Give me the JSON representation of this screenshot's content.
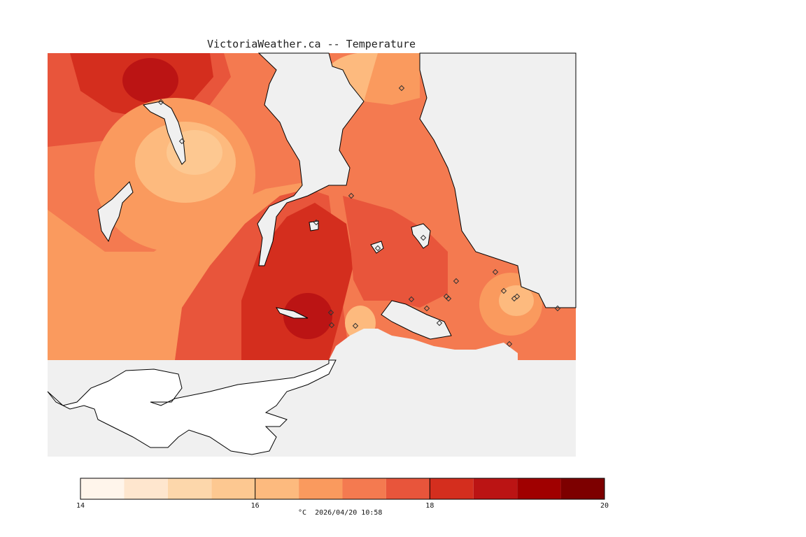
{
  "map": {
    "title": "VictoriaWeather.ca -- Temperature",
    "variable": "Temperature",
    "units": "°C",
    "timestamp": "2026/04/20 10:58",
    "background_color": "#f0f0f0",
    "land_outline_color": "#000000"
  },
  "legend": {
    "ticks": [
      "14",
      "16",
      "18",
      "20"
    ],
    "bins": [
      {
        "from": 14.0,
        "to": 14.5,
        "color": "#fff5eb"
      },
      {
        "from": 14.5,
        "to": 15.0,
        "color": "#fee6ce"
      },
      {
        "from": 15.0,
        "to": 15.5,
        "color": "#fdd7ab"
      },
      {
        "from": 15.5,
        "to": 16.0,
        "color": "#fdc891"
      },
      {
        "from": 16.0,
        "to": 16.5,
        "color": "#fdba7e"
      },
      {
        "from": 16.5,
        "to": 17.0,
        "color": "#fa9a5e"
      },
      {
        "from": 17.0,
        "to": 17.5,
        "color": "#f47a50"
      },
      {
        "from": 17.5,
        "to": 18.0,
        "color": "#e8553b"
      },
      {
        "from": 18.0,
        "to": 18.5,
        "color": "#d42e1e"
      },
      {
        "from": 18.5,
        "to": 19.0,
        "color": "#bb1414"
      },
      {
        "from": 19.0,
        "to": 19.5,
        "color": "#a00000"
      },
      {
        "from": 19.5,
        "to": 20.0,
        "color": "#7d0000"
      }
    ]
  },
  "footer": {
    "text": "°C  2026/04/20 10:58"
  },
  "stations": {
    "marker": "diamond-icon",
    "count": 22
  }
}
